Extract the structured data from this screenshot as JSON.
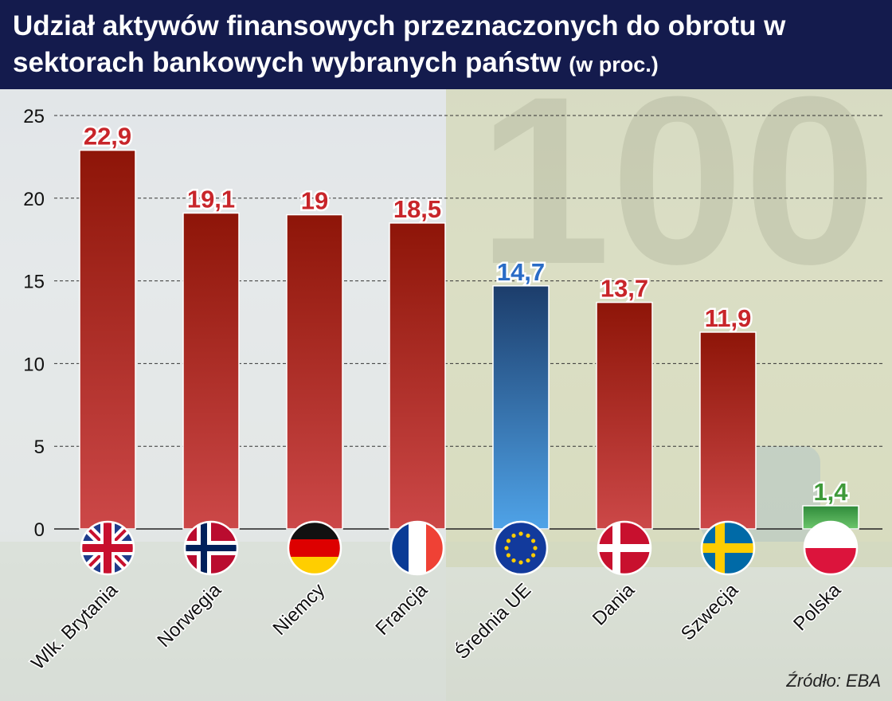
{
  "header": {
    "title_main": "Udział aktywów finansowych przeznaczonych do obrotu w sektorach bankowych wybranych państw",
    "title_unit": "(w proc.)"
  },
  "source": "Źródło: EBA",
  "colors": {
    "header_bg": "#141b4d",
    "bar_red_top": "#8e1508",
    "bar_red_bottom": "#cc4848",
    "bar_blue_top": "#1c3d6b",
    "bar_blue_bottom": "#4fa3e8",
    "bar_green_top": "#2f8a3a",
    "bar_green_bottom": "#6cc66c",
    "label_red": "#c8252a",
    "label_blue": "#2a6cc6",
    "label_green": "#3f9a3a"
  },
  "chart_data": {
    "type": "bar",
    "categories": [
      "Wlk. Brytania",
      "Norwegia",
      "Niemcy",
      "Francja",
      "Średnia UE",
      "Dania",
      "Szwecja",
      "Polska"
    ],
    "values": [
      22.9,
      19.1,
      19,
      18.5,
      14.7,
      13.7,
      11.9,
      1.4
    ],
    "value_labels": [
      "22,9",
      "19,1",
      "19",
      "18,5",
      "14,7",
      "13,7",
      "11,9",
      "1,4"
    ],
    "bar_color_groups": [
      "red",
      "red",
      "red",
      "red",
      "blue",
      "red",
      "red",
      "green"
    ],
    "flag_icons": [
      "flag-uk-icon",
      "flag-norway-icon",
      "flag-germany-icon",
      "flag-france-icon",
      "flag-eu-icon",
      "flag-denmark-icon",
      "flag-sweden-icon",
      "flag-poland-icon"
    ],
    "y_ticks": [
      "0",
      "5",
      "10",
      "15",
      "20",
      "25"
    ],
    "ylim": [
      0,
      25
    ],
    "grid": true,
    "legend": "none"
  }
}
